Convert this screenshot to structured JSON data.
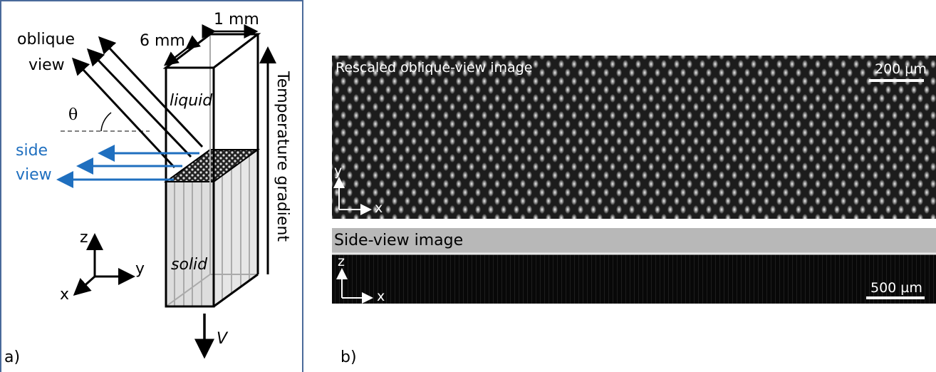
{
  "panel_a": {
    "label": "a)",
    "oblique_view": [
      "oblique",
      "view"
    ],
    "side_view": [
      "side",
      "view"
    ],
    "depth": "6 mm",
    "width": "1 mm",
    "angle": "θ",
    "liquid": "liquid",
    "solid": "solid",
    "gradient": "Temperature gradient",
    "velocity": "V",
    "axes": {
      "z": "z",
      "y": "y",
      "x": "x"
    }
  },
  "panel_b": {
    "label": "b)",
    "oblique_image": {
      "title": "Rescaled oblique-view image",
      "scale": "200 µm",
      "axis_y": "y",
      "axis_x": "x"
    },
    "side_image": {
      "title": "Side-view image",
      "scale": "500 µm",
      "axis_z": "z",
      "axis_x": "x"
    }
  }
}
